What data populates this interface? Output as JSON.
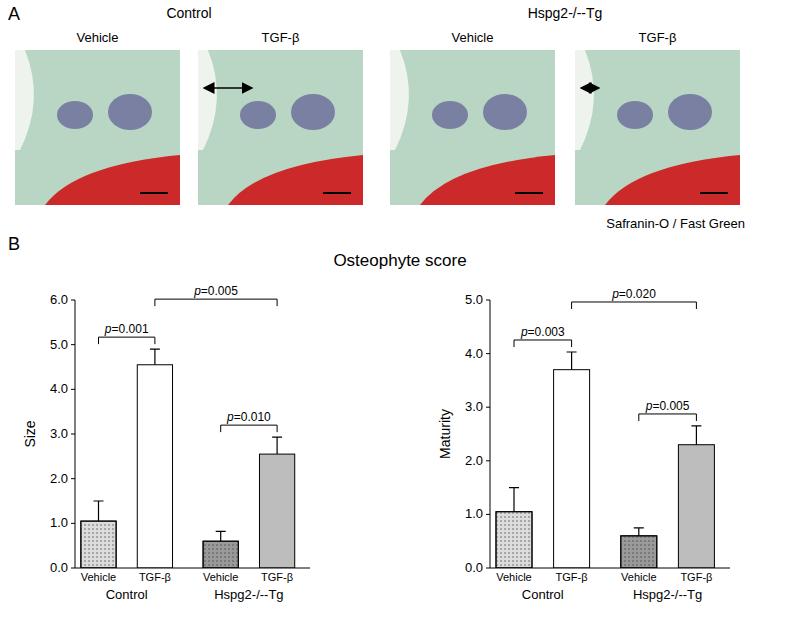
{
  "panel_a": {
    "label": "A",
    "groups": [
      {
        "label": "Control",
        "images": [
          "Vehicle",
          "TGF-β"
        ]
      },
      {
        "label": "Hspg2-/--Tg",
        "images": [
          "Vehicle",
          "TGF-β"
        ]
      }
    ],
    "stain": "Safranin-O / Fast Green"
  },
  "panel_b": {
    "label": "B",
    "title": "Osteophyte score"
  },
  "chart_data": [
    {
      "type": "bar",
      "y_label": "Size",
      "categories": [
        "Vehicle",
        "TGF-β",
        "Vehicle",
        "TGF-β"
      ],
      "groups": [
        {
          "label": "Control",
          "categories": [
            0,
            1
          ]
        },
        {
          "label": "Hspg2-/--Tg",
          "categories": [
            2,
            3
          ]
        }
      ],
      "values": [
        1.05,
        4.55,
        0.6,
        2.55
      ],
      "errors": [
        0.45,
        0.35,
        0.22,
        0.38
      ],
      "colors": [
        "#dcdcdc",
        "#ffffff",
        "#9a9a9a",
        "#bdbdbd"
      ],
      "ylim": [
        0,
        6
      ],
      "yticks": [
        {
          "value": 0,
          "label": "0.0"
        },
        {
          "value": 1,
          "label": "1.0"
        },
        {
          "value": 2,
          "label": "2.0"
        },
        {
          "value": 3,
          "label": "3.0"
        },
        {
          "value": 4,
          "label": "4.0"
        },
        {
          "value": 5,
          "label": "5.0"
        },
        {
          "value": 6,
          "label": "6.0"
        }
      ],
      "annotations": [
        {
          "text": "p=0.001",
          "between": [
            0,
            1
          ]
        },
        {
          "text": "p=0.010",
          "between": [
            2,
            3
          ]
        },
        {
          "text": "p=0.005",
          "between": [
            1,
            3
          ]
        }
      ]
    },
    {
      "type": "bar",
      "y_label": "Maturity",
      "categories": [
        "Vehicle",
        "TGF-β",
        "Vehicle",
        "TGF-β"
      ],
      "groups": [
        {
          "label": "Control",
          "categories": [
            0,
            1
          ]
        },
        {
          "label": "Hspg2-/--Tg",
          "categories": [
            2,
            3
          ]
        }
      ],
      "values": [
        1.05,
        3.7,
        0.6,
        2.3
      ],
      "errors": [
        0.45,
        0.33,
        0.15,
        0.35
      ],
      "colors": [
        "#dcdcdc",
        "#ffffff",
        "#9a9a9a",
        "#bdbdbd"
      ],
      "ylim": [
        0,
        5
      ],
      "yticks": [
        {
          "value": 0,
          "label": "0.0"
        },
        {
          "value": 1,
          "label": "1.0"
        },
        {
          "value": 2,
          "label": "2.0"
        },
        {
          "value": 3,
          "label": "3.0"
        },
        {
          "value": 4,
          "label": "4.0"
        },
        {
          "value": 5,
          "label": "5.0"
        }
      ],
      "annotations": [
        {
          "text": "p=0.003",
          "between": [
            0,
            1
          ]
        },
        {
          "text": "p=0.005",
          "between": [
            2,
            3
          ]
        },
        {
          "text": "p=0.020",
          "between": [
            1,
            3
          ]
        }
      ]
    }
  ]
}
